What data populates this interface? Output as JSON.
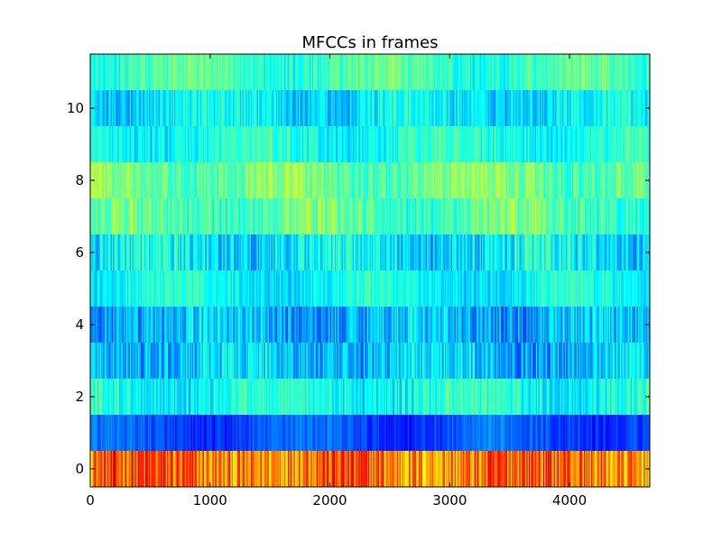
{
  "chart_data": {
    "type": "heatmap",
    "title": "MFCCs in frames",
    "xlabel": "",
    "ylabel": "",
    "xlim": [
      0,
      4670
    ],
    "ylim": [
      -0.5,
      11.5
    ],
    "x_ticks": [
      0,
      1000,
      2000,
      3000,
      4000
    ],
    "x_tick_labels": [
      "0",
      "1000",
      "2000",
      "3000",
      "4000"
    ],
    "y_ticks": [
      0,
      2,
      4,
      6,
      8,
      10
    ],
    "y_tick_labels": [
      "0",
      "2",
      "4",
      "6",
      "8",
      "10"
    ],
    "colormap": "jet",
    "grid": false,
    "n_frames": 4670,
    "rows": [
      {
        "coefficient": 0,
        "dominant": "orange-red/yellow, high values"
      },
      {
        "coefficient": 1,
        "dominant": "dark blue, low values"
      },
      {
        "coefficient": 2,
        "dominant": "cyan"
      },
      {
        "coefficient": 3,
        "dominant": "blue/cyan mix"
      },
      {
        "coefficient": 4,
        "dominant": "blue/cyan mix"
      },
      {
        "coefficient": 5,
        "dominant": "cyan"
      },
      {
        "coefficient": 6,
        "dominant": "cyan/blue mix"
      },
      {
        "coefficient": 7,
        "dominant": "cyan/light green"
      },
      {
        "coefficient": 8,
        "dominant": "light green/cyan"
      },
      {
        "coefficient": 9,
        "dominant": "cyan"
      },
      {
        "coefficient": 10,
        "dominant": "cyan/blue"
      },
      {
        "coefficient": 11,
        "dominant": "cyan/light green"
      }
    ]
  }
}
